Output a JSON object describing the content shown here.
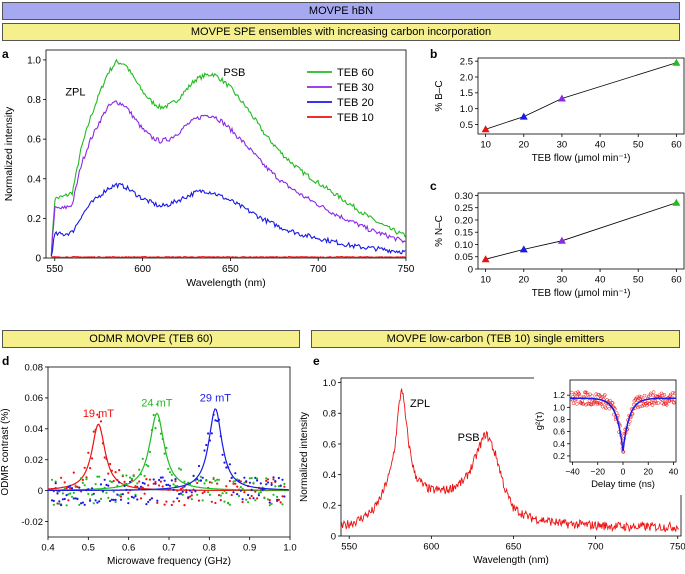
{
  "banners": {
    "top": "MOVPE hBN",
    "row1": "MOVPE SPE ensembles with increasing carbon incorporation",
    "row2_left": "ODMR MOVPE (TEB 60)",
    "row2_right": "MOVPE low-carbon (TEB 10) single emitters"
  },
  "panel_letters": {
    "a": "a",
    "b": "b",
    "c": "c",
    "d": "d",
    "e": "e"
  },
  "colors": {
    "green": "#22bb22",
    "purple": "#8a2be2",
    "blue": "#1a1ae6",
    "red": "#ee1111",
    "banner_blue": "#a6a8f0",
    "banner_yellow": "#f5ef8c"
  },
  "chart_data": [
    {
      "id": "a",
      "type": "line",
      "xlabel": "Wavelength (nm)",
      "ylabel": "Normalized intensity",
      "xlim": [
        545,
        750
      ],
      "ylim": [
        0,
        1.05
      ],
      "xticks": [
        550,
        600,
        650,
        700,
        750
      ],
      "yticks": [
        0,
        0.2,
        0.4,
        0.6,
        0.8,
        1.0
      ],
      "xtick_labels": [
        "550",
        "600",
        "650",
        "700",
        "750"
      ],
      "ytick_labels": [
        "0",
        "0.2",
        "0.4",
        "0.6",
        "0.8",
        "1.0"
      ],
      "annotations": [
        "ZPL",
        "PSB"
      ],
      "legend_position": "top-right",
      "series": [
        {
          "name": "TEB 60",
          "color": "#22bb22",
          "x": [
            548,
            550,
            555,
            560,
            565,
            570,
            575,
            580,
            585,
            590,
            595,
            600,
            605,
            610,
            615,
            620,
            625,
            630,
            635,
            640,
            645,
            650,
            660,
            670,
            680,
            690,
            700,
            710,
            720,
            730,
            740,
            750
          ],
          "y": [
            0.02,
            0.3,
            0.31,
            0.33,
            0.55,
            0.7,
            0.82,
            0.93,
            0.99,
            0.98,
            0.91,
            0.84,
            0.79,
            0.76,
            0.77,
            0.8,
            0.85,
            0.9,
            0.92,
            0.93,
            0.9,
            0.86,
            0.75,
            0.62,
            0.52,
            0.44,
            0.38,
            0.32,
            0.26,
            0.2,
            0.15,
            0.11
          ]
        },
        {
          "name": "TEB 30",
          "color": "#8a2be2",
          "x": [
            548,
            550,
            555,
            560,
            565,
            570,
            575,
            580,
            585,
            590,
            595,
            600,
            605,
            610,
            615,
            620,
            625,
            630,
            635,
            640,
            645,
            650,
            660,
            670,
            680,
            690,
            700,
            710,
            720,
            730,
            740,
            750
          ],
          "y": [
            0.02,
            0.25,
            0.25,
            0.27,
            0.47,
            0.59,
            0.68,
            0.76,
            0.79,
            0.77,
            0.71,
            0.65,
            0.61,
            0.59,
            0.6,
            0.63,
            0.67,
            0.7,
            0.72,
            0.72,
            0.69,
            0.65,
            0.56,
            0.46,
            0.38,
            0.32,
            0.27,
            0.22,
            0.18,
            0.14,
            0.11,
            0.08
          ]
        },
        {
          "name": "TEB 20",
          "color": "#1a1ae6",
          "x": [
            548,
            550,
            555,
            560,
            565,
            570,
            575,
            580,
            585,
            590,
            595,
            600,
            605,
            610,
            615,
            620,
            625,
            630,
            635,
            640,
            645,
            650,
            660,
            670,
            680,
            690,
            700,
            710,
            720,
            730,
            740,
            750
          ],
          "y": [
            0.01,
            0.12,
            0.12,
            0.13,
            0.21,
            0.27,
            0.31,
            0.35,
            0.37,
            0.36,
            0.33,
            0.3,
            0.28,
            0.26,
            0.27,
            0.29,
            0.31,
            0.33,
            0.34,
            0.33,
            0.31,
            0.29,
            0.24,
            0.19,
            0.15,
            0.12,
            0.1,
            0.08,
            0.06,
            0.05,
            0.04,
            0.03
          ]
        },
        {
          "name": "TEB 10",
          "color": "#ee1111",
          "x": [
            548,
            750
          ],
          "y": [
            0.005,
            0.005
          ]
        }
      ]
    },
    {
      "id": "b",
      "type": "line",
      "xlabel": "TEB flow (μmol min⁻¹)",
      "ylabel": "% B–C",
      "xlim": [
        8,
        62
      ],
      "ylim": [
        0.2,
        2.6
      ],
      "xticks": [
        10,
        20,
        30,
        40,
        50,
        60
      ],
      "yticks": [
        0.5,
        1.0,
        1.5,
        2.0,
        2.5
      ],
      "xtick_labels": [
        "10",
        "20",
        "30",
        "40",
        "50",
        "60"
      ],
      "ytick_labels": [
        "0.5",
        "1.0",
        "1.5",
        "2.0",
        "2.5"
      ],
      "x": [
        10,
        20,
        30,
        60
      ],
      "y": [
        0.35,
        0.75,
        1.32,
        2.45
      ],
      "point_colors": [
        "#ee1111",
        "#1a1ae6",
        "#8a2be2",
        "#22bb22"
      ]
    },
    {
      "id": "c",
      "type": "line",
      "xlabel": "TEB flow (μmol min⁻¹)",
      "ylabel": "% N–C",
      "xlim": [
        8,
        62
      ],
      "ylim": [
        0,
        0.31
      ],
      "xticks": [
        10,
        20,
        30,
        40,
        50,
        60
      ],
      "yticks": [
        0,
        0.05,
        0.1,
        0.15,
        0.2,
        0.25,
        0.3
      ],
      "xtick_labels": [
        "10",
        "20",
        "30",
        "40",
        "50",
        "60"
      ],
      "ytick_labels": [
        "0",
        "0.05",
        "0.10",
        "0.15",
        "0.20",
        "0.25",
        "0.30"
      ],
      "x": [
        10,
        20,
        30,
        60
      ],
      "y": [
        0.04,
        0.08,
        0.115,
        0.27
      ],
      "point_colors": [
        "#ee1111",
        "#1a1ae6",
        "#8a2be2",
        "#22bb22"
      ]
    },
    {
      "id": "d",
      "type": "scatter",
      "xlabel": "Microwave frequency (GHz)",
      "ylabel": "ODMR contrast (%)",
      "xlim": [
        0.4,
        1.0
      ],
      "ylim": [
        -0.03,
        0.08
      ],
      "xticks": [
        0.4,
        0.5,
        0.6,
        0.7,
        0.8,
        0.9,
        1.0
      ],
      "yticks": [
        -0.02,
        0,
        0.02,
        0.04,
        0.06,
        0.08
      ],
      "xtick_labels": [
        "0.4",
        "0.5",
        "0.6",
        "0.7",
        "0.8",
        "0.9",
        "1.0"
      ],
      "ytick_labels": [
        "-0.02",
        "0",
        "0.02",
        "0.04",
        "0.06",
        "0.08"
      ],
      "series": [
        {
          "name": "19 mT",
          "color": "#ee1111",
          "center": 0.525,
          "amplitude": 0.043,
          "width": 0.02
        },
        {
          "name": "24 mT",
          "color": "#22bb22",
          "center": 0.67,
          "amplitude": 0.05,
          "width": 0.022
        },
        {
          "name": "29 mT",
          "color": "#1a1ae6",
          "center": 0.815,
          "amplitude": 0.053,
          "width": 0.02
        }
      ]
    },
    {
      "id": "e",
      "type": "line",
      "xlabel": "Wavelength (nm)",
      "ylabel": "Normalized intensity",
      "xlim": [
        545,
        752
      ],
      "ylim": [
        0,
        1.03
      ],
      "xticks": [
        550,
        600,
        650,
        700,
        750
      ],
      "yticks": [
        0,
        0.2,
        0.4,
        0.6,
        0.8,
        1.0
      ],
      "xtick_labels": [
        "550",
        "600",
        "650",
        "700",
        "750"
      ],
      "ytick_labels": [
        "0",
        "0.2",
        "0.4",
        "0.6",
        "0.8",
        "1.0"
      ],
      "annotations": [
        "ZPL",
        "PSB"
      ],
      "series": [
        {
          "name": "",
          "color": "#ee1111",
          "x": [
            545,
            555,
            565,
            570,
            575,
            578,
            580,
            582,
            584,
            586,
            588,
            590,
            595,
            600,
            610,
            620,
            625,
            630,
            633,
            636,
            640,
            645,
            650,
            660,
            670,
            680,
            700,
            720,
            750
          ],
          "y": [
            0.06,
            0.1,
            0.17,
            0.27,
            0.42,
            0.6,
            0.82,
            0.98,
            0.8,
            0.62,
            0.5,
            0.4,
            0.33,
            0.3,
            0.3,
            0.36,
            0.46,
            0.6,
            0.67,
            0.62,
            0.5,
            0.3,
            0.18,
            0.12,
            0.1,
            0.08,
            0.07,
            0.06,
            0.06
          ]
        }
      ],
      "inset": {
        "type": "scatter",
        "xlabel": "Delay time (ns)",
        "ylabel": "g²(τ)",
        "xlim": [
          -42,
          42
        ],
        "ylim": [
          0.1,
          1.45
        ],
        "xticks": [
          -40,
          -20,
          0,
          20,
          40
        ],
        "yticks": [
          0.2,
          0.4,
          0.6,
          0.8,
          1.0,
          1.2
        ],
        "xtick_labels": [
          "−40",
          "−20",
          "0",
          "20",
          "40"
        ],
        "ytick_labels": [
          "0.2",
          "0.4",
          "0.6",
          "0.8",
          "1.0",
          "1.2"
        ],
        "baseline": 1.15,
        "dip_minimum": 0.28,
        "decay_time": 5
      }
    }
  ]
}
